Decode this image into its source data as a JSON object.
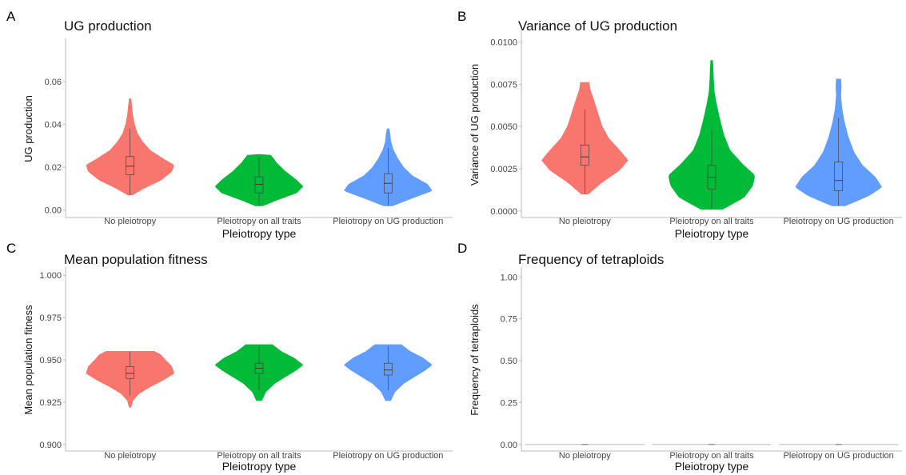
{
  "colors": {
    "No pleiotropy": "#f8766d",
    "Pleiotropy on all traits": "#00ba38",
    "Pleiotropy on UG production": "#619cff"
  },
  "chart_data": [
    {
      "letter": "A",
      "type": "violin",
      "title": "UG production",
      "xlabel": "Pleiotropy type",
      "ylabel": "UG production",
      "categories": [
        "No pleiotropy",
        "Pleiotropy on all traits",
        "Pleiotropy on UG production"
      ],
      "ylim": [
        -0.002,
        0.078
      ],
      "yticks": [
        0.0,
        0.02,
        0.04,
        0.06
      ],
      "yticklabels": [
        "0.00",
        "0.02",
        "0.04",
        "0.06"
      ],
      "series": [
        {
          "name": "No pleiotropy",
          "min": 0.007,
          "max": 0.052,
          "q1": 0.0165,
          "median": 0.0205,
          "q3": 0.025,
          "whisker_low": 0.007,
          "whisker_high": 0.038,
          "profile": [
            [
              0.007,
              0.05
            ],
            [
              0.01,
              0.3
            ],
            [
              0.014,
              0.7
            ],
            [
              0.018,
              0.95
            ],
            [
              0.021,
              1.0
            ],
            [
              0.024,
              0.75
            ],
            [
              0.028,
              0.45
            ],
            [
              0.032,
              0.28
            ],
            [
              0.036,
              0.16
            ],
            [
              0.04,
              0.1
            ],
            [
              0.044,
              0.06
            ],
            [
              0.048,
              0.04
            ],
            [
              0.052,
              0.02
            ]
          ]
        },
        {
          "name": "Pleiotropy on all traits",
          "min": 0.002,
          "max": 0.026,
          "q1": 0.008,
          "median": 0.012,
          "q3": 0.0155,
          "whisker_low": 0.002,
          "whisker_high": 0.025,
          "profile": [
            [
              0.002,
              0.08
            ],
            [
              0.005,
              0.45
            ],
            [
              0.008,
              0.85
            ],
            [
              0.011,
              1.0
            ],
            [
              0.014,
              0.85
            ],
            [
              0.018,
              0.6
            ],
            [
              0.022,
              0.4
            ],
            [
              0.026,
              0.25
            ]
          ]
        },
        {
          "name": "Pleiotropy on UG production",
          "min": 0.002,
          "max": 0.038,
          "q1": 0.008,
          "median": 0.0125,
          "q3": 0.017,
          "whisker_low": 0.002,
          "whisker_high": 0.029,
          "profile": [
            [
              0.002,
              0.1
            ],
            [
              0.006,
              0.6
            ],
            [
              0.009,
              1.0
            ],
            [
              0.012,
              0.9
            ],
            [
              0.016,
              0.55
            ],
            [
              0.02,
              0.35
            ],
            [
              0.024,
              0.22
            ],
            [
              0.028,
              0.12
            ],
            [
              0.032,
              0.06
            ],
            [
              0.036,
              0.04
            ],
            [
              0.038,
              0.02
            ]
          ]
        }
      ]
    },
    {
      "letter": "B",
      "type": "violin",
      "title": "Variance of UG production",
      "xlabel": "Pleiotropy type",
      "ylabel": "Variance of UG production",
      "categories": [
        "No pleiotropy",
        "Pleiotropy on all traits",
        "Pleiotropy on UG production"
      ],
      "ylim": [
        -0.0002,
        0.0104
      ],
      "yticks": [
        0.0,
        0.0025,
        0.005,
        0.0075,
        0.01
      ],
      "yticklabels": [
        "0.0000",
        "0.0025",
        "0.0050",
        "0.0075",
        "0.0100"
      ],
      "series": [
        {
          "name": "No pleiotropy",
          "min": 0.001,
          "max": 0.0076,
          "q1": 0.0027,
          "median": 0.0032,
          "q3": 0.0039,
          "whisker_low": 0.001,
          "whisker_high": 0.006,
          "profile": [
            [
              0.001,
              0.08
            ],
            [
              0.0017,
              0.4
            ],
            [
              0.0024,
              0.8
            ],
            [
              0.003,
              1.0
            ],
            [
              0.0036,
              0.8
            ],
            [
              0.0043,
              0.55
            ],
            [
              0.005,
              0.4
            ],
            [
              0.0058,
              0.3
            ],
            [
              0.0066,
              0.2
            ],
            [
              0.0072,
              0.12
            ],
            [
              0.0076,
              0.1
            ]
          ]
        },
        {
          "name": "Pleiotropy on all traits",
          "min": 0.0001,
          "max": 0.0089,
          "q1": 0.0013,
          "median": 0.002,
          "q3": 0.0027,
          "whisker_low": 0.0001,
          "whisker_high": 0.0048,
          "profile": [
            [
              0.0001,
              0.25
            ],
            [
              0.0008,
              0.75
            ],
            [
              0.0015,
              0.95
            ],
            [
              0.0021,
              1.0
            ],
            [
              0.0028,
              0.7
            ],
            [
              0.0036,
              0.42
            ],
            [
              0.0045,
              0.28
            ],
            [
              0.0055,
              0.18
            ],
            [
              0.0062,
              0.12
            ],
            [
              0.007,
              0.06
            ],
            [
              0.0078,
              0.04
            ],
            [
              0.0085,
              0.03
            ],
            [
              0.0089,
              0.02
            ]
          ]
        },
        {
          "name": "Pleiotropy on UG production",
          "min": 0.0003,
          "max": 0.0078,
          "q1": 0.0012,
          "median": 0.0018,
          "q3": 0.0029,
          "whisker_low": 0.0003,
          "whisker_high": 0.0055,
          "profile": [
            [
              0.0003,
              0.15
            ],
            [
              0.0009,
              0.7
            ],
            [
              0.0014,
              1.0
            ],
            [
              0.002,
              0.85
            ],
            [
              0.0027,
              0.55
            ],
            [
              0.0035,
              0.35
            ],
            [
              0.0044,
              0.22
            ],
            [
              0.0053,
              0.13
            ],
            [
              0.006,
              0.08
            ],
            [
              0.0068,
              0.05
            ],
            [
              0.0074,
              0.06
            ],
            [
              0.0078,
              0.05
            ]
          ]
        }
      ]
    },
    {
      "letter": "C",
      "type": "violin",
      "title": "Mean population fitness",
      "xlabel": "Pleiotropy type",
      "ylabel": "Mean population fitness",
      "categories": [
        "No pleiotropy",
        "Pleiotropy on all traits",
        "Pleiotropy on UG production"
      ],
      "ylim": [
        0.898,
        1.002
      ],
      "yticks": [
        0.9,
        0.925,
        0.95,
        0.975,
        1.0
      ],
      "yticklabels": [
        "0.900",
        "0.925",
        "0.950",
        "0.975",
        "1.000"
      ],
      "series": [
        {
          "name": "No pleiotropy",
          "min": 0.922,
          "max": 0.955,
          "q1": 0.939,
          "median": 0.942,
          "q3": 0.946,
          "whisker_low": 0.929,
          "whisker_high": 0.955,
          "profile": [
            [
              0.922,
              0.02
            ],
            [
              0.926,
              0.06
            ],
            [
              0.93,
              0.2
            ],
            [
              0.934,
              0.45
            ],
            [
              0.938,
              0.75
            ],
            [
              0.942,
              1.0
            ],
            [
              0.946,
              0.95
            ],
            [
              0.95,
              0.8
            ],
            [
              0.953,
              0.7
            ],
            [
              0.955,
              0.55
            ]
          ]
        },
        {
          "name": "Pleiotropy on all traits",
          "min": 0.926,
          "max": 0.959,
          "q1": 0.942,
          "median": 0.945,
          "q3": 0.948,
          "whisker_low": 0.932,
          "whisker_high": 0.958,
          "profile": [
            [
              0.926,
              0.06
            ],
            [
              0.931,
              0.15
            ],
            [
              0.936,
              0.35
            ],
            [
              0.94,
              0.6
            ],
            [
              0.944,
              0.85
            ],
            [
              0.947,
              1.0
            ],
            [
              0.951,
              0.8
            ],
            [
              0.955,
              0.5
            ],
            [
              0.959,
              0.3
            ]
          ]
        },
        {
          "name": "Pleiotropy on UG production",
          "min": 0.926,
          "max": 0.959,
          "q1": 0.941,
          "median": 0.944,
          "q3": 0.948,
          "whisker_low": 0.932,
          "whisker_high": 0.958,
          "profile": [
            [
              0.926,
              0.06
            ],
            [
              0.931,
              0.15
            ],
            [
              0.936,
              0.35
            ],
            [
              0.94,
              0.6
            ],
            [
              0.944,
              0.85
            ],
            [
              0.947,
              1.0
            ],
            [
              0.951,
              0.8
            ],
            [
              0.955,
              0.5
            ],
            [
              0.959,
              0.3
            ]
          ]
        }
      ]
    },
    {
      "letter": "D",
      "type": "violin",
      "title": "Frequency of tetraploids",
      "xlabel": "Pleiotropy type",
      "ylabel": "Frequency of tetraploids",
      "categories": [
        "No pleiotropy",
        "Pleiotropy on all traits",
        "Pleiotropy on UG production"
      ],
      "ylim": [
        -0.02,
        1.03
      ],
      "yticks": [
        0.0,
        0.25,
        0.5,
        0.75,
        1.0
      ],
      "yticklabels": [
        "0.00",
        "0.25",
        "0.50",
        "0.75",
        "1.00"
      ],
      "series": [
        {
          "name": "No pleiotropy",
          "value": 0.0
        },
        {
          "name": "Pleiotropy on all traits",
          "value": 0.0
        },
        {
          "name": "Pleiotropy on UG production",
          "value": 0.0
        }
      ]
    }
  ]
}
